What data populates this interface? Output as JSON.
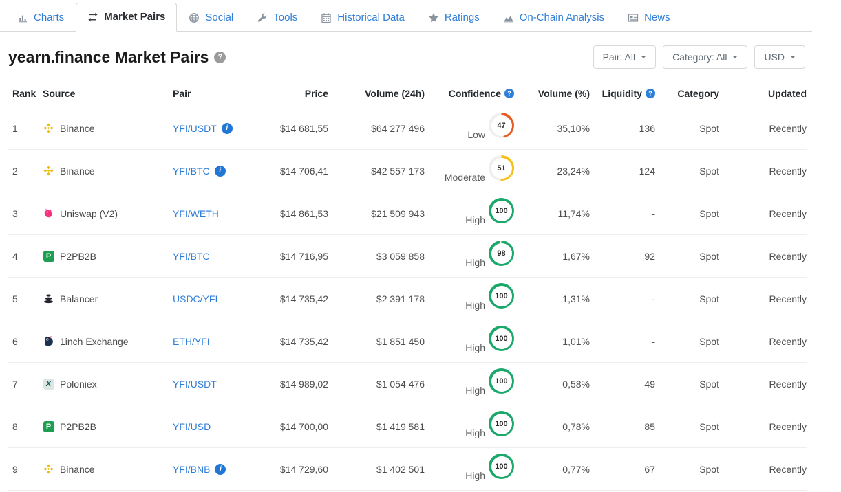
{
  "nav": {
    "tabs": [
      {
        "label": "Charts",
        "icon": "bar-chart-icon",
        "active": false
      },
      {
        "label": "Market Pairs",
        "icon": "exchange-arrows-icon",
        "active": true
      },
      {
        "label": "Social",
        "icon": "globe-icon",
        "active": false
      },
      {
        "label": "Tools",
        "icon": "wrench-icon",
        "active": false
      },
      {
        "label": "Historical Data",
        "icon": "calendar-icon",
        "active": false
      },
      {
        "label": "Ratings",
        "icon": "star-icon",
        "active": false
      },
      {
        "label": "On-Chain Analysis",
        "icon": "area-chart-icon",
        "active": false
      },
      {
        "label": "News",
        "icon": "news-icon",
        "active": false
      }
    ]
  },
  "page": {
    "title": "yearn.finance Market Pairs"
  },
  "filters": {
    "pair_label": "Pair: All",
    "category_label": "Category: All",
    "currency_label": "USD"
  },
  "table": {
    "columns": [
      {
        "label": "Rank",
        "help": false
      },
      {
        "label": "Source",
        "help": false
      },
      {
        "label": "Pair",
        "help": false
      },
      {
        "label": "Price",
        "help": false
      },
      {
        "label": "Volume (24h)",
        "help": false
      },
      {
        "label": "Confidence",
        "help": true
      },
      {
        "label": "Volume (%)",
        "help": false
      },
      {
        "label": "Liquidity",
        "help": true
      },
      {
        "label": "Category",
        "help": false
      },
      {
        "label": "Updated",
        "help": false
      }
    ],
    "rows": [
      {
        "rank": "1",
        "source": "Binance",
        "source_icon": "binance-icon",
        "pair": "YFI/USDT",
        "pair_info": true,
        "price": "$14 681,55",
        "volume_24h": "$64 277 496",
        "confidence_label": "Low",
        "confidence_score": "47",
        "confidence_level": "low",
        "volume_pct": "35,10%",
        "liquidity": "136",
        "category": "Spot",
        "updated": "Recently"
      },
      {
        "rank": "2",
        "source": "Binance",
        "source_icon": "binance-icon",
        "pair": "YFI/BTC",
        "pair_info": true,
        "price": "$14 706,41",
        "volume_24h": "$42 557 173",
        "confidence_label": "Moderate",
        "confidence_score": "51",
        "confidence_level": "moderate",
        "volume_pct": "23,24%",
        "liquidity": "124",
        "category": "Spot",
        "updated": "Recently"
      },
      {
        "rank": "3",
        "source": "Uniswap (V2)",
        "source_icon": "uniswap-icon",
        "pair": "YFI/WETH",
        "pair_info": false,
        "price": "$14 861,53",
        "volume_24h": "$21 509 943",
        "confidence_label": "High",
        "confidence_score": "100",
        "confidence_level": "high",
        "volume_pct": "11,74%",
        "liquidity": "-",
        "category": "Spot",
        "updated": "Recently"
      },
      {
        "rank": "4",
        "source": "P2PB2B",
        "source_icon": "p2pb2b-icon",
        "pair": "YFI/BTC",
        "pair_info": false,
        "price": "$14 716,95",
        "volume_24h": "$3 059 858",
        "confidence_label": "High",
        "confidence_score": "98",
        "confidence_level": "high",
        "volume_pct": "1,67%",
        "liquidity": "92",
        "category": "Spot",
        "updated": "Recently"
      },
      {
        "rank": "5",
        "source": "Balancer",
        "source_icon": "balancer-icon",
        "pair": "USDC/YFI",
        "pair_info": false,
        "price": "$14 735,42",
        "volume_24h": "$2 391 178",
        "confidence_label": "High",
        "confidence_score": "100",
        "confidence_level": "high",
        "volume_pct": "1,31%",
        "liquidity": "-",
        "category": "Spot",
        "updated": "Recently"
      },
      {
        "rank": "6",
        "source": "1inch Exchange",
        "source_icon": "oneinch-icon",
        "pair": "ETH/YFI",
        "pair_info": false,
        "price": "$14 735,42",
        "volume_24h": "$1 851 450",
        "confidence_label": "High",
        "confidence_score": "100",
        "confidence_level": "high",
        "volume_pct": "1,01%",
        "liquidity": "-",
        "category": "Spot",
        "updated": "Recently"
      },
      {
        "rank": "7",
        "source": "Poloniex",
        "source_icon": "poloniex-icon",
        "pair": "YFI/USDT",
        "pair_info": false,
        "price": "$14 989,02",
        "volume_24h": "$1 054 476",
        "confidence_label": "High",
        "confidence_score": "100",
        "confidence_level": "high",
        "volume_pct": "0,58%",
        "liquidity": "49",
        "category": "Spot",
        "updated": "Recently"
      },
      {
        "rank": "8",
        "source": "P2PB2B",
        "source_icon": "p2pb2b-icon",
        "pair": "YFI/USD",
        "pair_info": false,
        "price": "$14 700,00",
        "volume_24h": "$1 419 581",
        "confidence_label": "High",
        "confidence_score": "100",
        "confidence_level": "high",
        "volume_pct": "0,78%",
        "liquidity": "85",
        "category": "Spot",
        "updated": "Recently"
      },
      {
        "rank": "9",
        "source": "Binance",
        "source_icon": "binance-icon",
        "pair": "YFI/BNB",
        "pair_info": true,
        "price": "$14 729,60",
        "volume_24h": "$1 402 501",
        "confidence_label": "High",
        "confidence_score": "100",
        "confidence_level": "high",
        "volume_pct": "0,77%",
        "liquidity": "67",
        "category": "Spot",
        "updated": "Recently"
      }
    ]
  },
  "colors": {
    "link": "#2f7ed8",
    "confidence_low": "#e85c24",
    "confidence_moderate": "#f5bf17",
    "confidence_high": "#1ca86b",
    "gauge_track": "#efefef"
  }
}
